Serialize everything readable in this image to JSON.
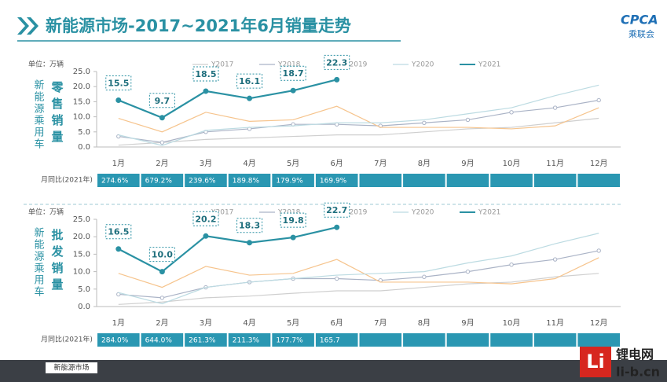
{
  "header": {
    "title": "新能源市场-2017~2021年6月销量走势",
    "logo": "CPCA",
    "logo_sub": "乘联会"
  },
  "chart_data": [
    {
      "type": "line",
      "unit": "单位：万辆",
      "side_label": "新能源乘用车",
      "metric_label": "零售销量",
      "yoy_title": "月同比(2021年)",
      "categories": [
        "1月",
        "2月",
        "3月",
        "4月",
        "5月",
        "6月",
        "7月",
        "8月",
        "9月",
        "10月",
        "11月",
        "12月"
      ],
      "ylim": [
        0,
        25
      ],
      "yticks": [
        {
          "value": 0,
          "label": "0.0"
        },
        {
          "value": 5,
          "label": "5.0"
        },
        {
          "value": 10,
          "label": "10.0"
        },
        {
          "value": 15,
          "label": "15.0"
        },
        {
          "value": 20,
          "label": "20.0"
        },
        {
          "value": 25,
          "label": "25.0"
        }
      ],
      "series": [
        {
          "name": "Y2017",
          "color": "#cfcfcf",
          "values": [
            0.6,
            1.5,
            2.5,
            3.0,
            3.5,
            4.0,
            4.0,
            5.0,
            6.0,
            6.5,
            8.0,
            9.5
          ]
        },
        {
          "name": "Y2018",
          "color": "#aab3c6",
          "values": [
            3.5,
            1.5,
            5.0,
            6.0,
            7.5,
            7.5,
            7.0,
            8.0,
            9.0,
            11.5,
            13.0,
            15.5
          ]
        },
        {
          "name": "Y2019",
          "color": "#f6c48d",
          "values": [
            9.5,
            5.0,
            11.5,
            8.5,
            9.0,
            13.5,
            6.5,
            6.5,
            6.5,
            6.0,
            7.0,
            13.0
          ]
        },
        {
          "name": "Y2020",
          "color": "#bcdbe2",
          "values": [
            4.0,
            0.5,
            5.5,
            6.5,
            7.0,
            8.0,
            8.0,
            9.0,
            11.0,
            13.0,
            17.0,
            20.5
          ]
        },
        {
          "name": "Y2021",
          "color": "#2a91a3",
          "values": [
            15.5,
            9.7,
            18.5,
            16.1,
            18.7,
            22.3,
            null,
            null,
            null,
            null,
            null,
            null
          ]
        }
      ],
      "yoy_labels": [
        "274.6%",
        "679.2%",
        "239.6%",
        "189.8%",
        "179.9%",
        "169.9%"
      ]
    },
    {
      "type": "line",
      "unit": "单位：万辆",
      "side_label": "新能源乘用车",
      "metric_label": "批发销量",
      "yoy_title": "月同比(2021年)",
      "categories": [
        "1月",
        "2月",
        "3月",
        "4月",
        "5月",
        "6月",
        "7月",
        "8月",
        "9月",
        "10月",
        "11月",
        "12月"
      ],
      "ylim": [
        0,
        25
      ],
      "yticks": [
        {
          "value": 0,
          "label": "0.0"
        },
        {
          "value": 5,
          "label": "5.0"
        },
        {
          "value": 10,
          "label": "10.0"
        },
        {
          "value": 15,
          "label": "15.0"
        },
        {
          "value": 20,
          "label": "20.0"
        },
        {
          "value": 25,
          "label": "25.0"
        }
      ],
      "series": [
        {
          "name": "Y2017",
          "color": "#cfcfcf",
          "values": [
            0.6,
            1.3,
            2.5,
            3.0,
            3.8,
            4.5,
            4.5,
            5.5,
            6.5,
            7.0,
            8.5,
            9.5
          ]
        },
        {
          "name": "Y2018",
          "color": "#aab3c6",
          "values": [
            3.5,
            2.5,
            5.5,
            7.0,
            8.0,
            8.0,
            7.5,
            8.5,
            10.0,
            12.0,
            13.5,
            16.0
          ]
        },
        {
          "name": "Y2019",
          "color": "#f6c48d",
          "values": [
            9.5,
            5.5,
            11.5,
            9.0,
            9.5,
            13.5,
            7.0,
            7.0,
            7.0,
            6.5,
            8.0,
            14.0
          ]
        },
        {
          "name": "Y2020",
          "color": "#bcdbe2",
          "values": [
            4.0,
            0.8,
            5.5,
            7.0,
            8.0,
            9.0,
            9.5,
            10.0,
            12.5,
            14.5,
            18.0,
            21.0
          ]
        },
        {
          "name": "Y2021",
          "color": "#2a91a3",
          "values": [
            16.5,
            10.0,
            20.2,
            18.3,
            19.8,
            22.7,
            null,
            null,
            null,
            null,
            null,
            null
          ],
          "value_labels": [
            "16.5",
            "10.0",
            "20.2",
            "18.3",
            "19.8",
            "22.7",
            null,
            null,
            null,
            null,
            null,
            null
          ]
        }
      ],
      "yoy_labels": [
        "284.0%",
        "644.0%",
        "261.3%",
        "211.3%",
        "177.7%",
        "165.7"
      ]
    }
  ],
  "tabs": [
    "新能源市场"
  ],
  "watermark": {
    "mark": "Li",
    "name": "锂电网",
    "site": "li-b.cn"
  }
}
